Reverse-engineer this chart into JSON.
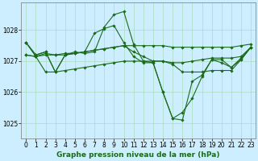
{
  "background_color": "#cceeff",
  "grid_color": "#aaddbb",
  "line_color": "#1a6b1a",
  "title": "Graphe pression niveau de la mer (hPa)",
  "xlim": [
    -0.5,
    23.5
  ],
  "ylim": [
    1024.5,
    1028.9
  ],
  "yticks": [
    1025,
    1026,
    1027,
    1028
  ],
  "xticks": [
    0,
    1,
    2,
    3,
    4,
    5,
    6,
    7,
    8,
    9,
    10,
    11,
    12,
    13,
    14,
    15,
    16,
    17,
    18,
    19,
    20,
    21,
    22,
    23
  ],
  "series": [
    [
      1027.6,
      1027.2,
      1027.3,
      1026.65,
      1027.2,
      1027.3,
      1027.25,
      1027.3,
      1028.1,
      1028.5,
      1028.6,
      1027.55,
      1027.0,
      1026.95,
      1026.0,
      1025.15,
      1025.1,
      1026.35,
      1026.55,
      1027.05,
      1027.05,
      1026.8,
      1027.1,
      1027.45
    ],
    [
      1027.6,
      1027.2,
      1027.3,
      1026.65,
      1027.2,
      1027.25,
      1027.3,
      1027.9,
      1028.05,
      1028.15,
      1027.6,
      1027.15,
      1026.95,
      1026.95,
      1026.0,
      1025.15,
      1025.35,
      1025.8,
      1026.5,
      1027.05,
      1026.95,
      1026.8,
      1027.05,
      1027.45
    ],
    [
      1027.6,
      1027.15,
      1027.25,
      1027.2,
      1027.2,
      1027.25,
      1027.3,
      1027.35,
      1027.4,
      1027.45,
      1027.5,
      1027.3,
      1027.15,
      1027.0,
      1027.0,
      1026.95,
      1026.95,
      1027.0,
      1027.05,
      1027.1,
      1027.1,
      1027.1,
      1027.15,
      1027.45
    ],
    [
      1027.2,
      1027.15,
      1027.2,
      1027.2,
      1027.25,
      1027.25,
      1027.3,
      1027.35,
      1027.4,
      1027.45,
      1027.5,
      1027.5,
      1027.5,
      1027.5,
      1027.5,
      1027.45,
      1027.45,
      1027.45,
      1027.45,
      1027.45,
      1027.45,
      1027.45,
      1027.5,
      1027.55
    ],
    [
      1027.2,
      1027.15,
      1026.65,
      1026.65,
      1026.7,
      1026.75,
      1026.8,
      1026.85,
      1026.9,
      1026.95,
      1027.0,
      1027.0,
      1027.0,
      1027.0,
      1027.0,
      1026.9,
      1026.65,
      1026.65,
      1026.65,
      1026.7,
      1026.7,
      1026.7,
      1027.05,
      1027.45
    ]
  ],
  "marker": "D",
  "marker_size": 1.8,
  "linewidth": 0.8,
  "title_fontsize": 6.5,
  "tick_fontsize": 5.5
}
